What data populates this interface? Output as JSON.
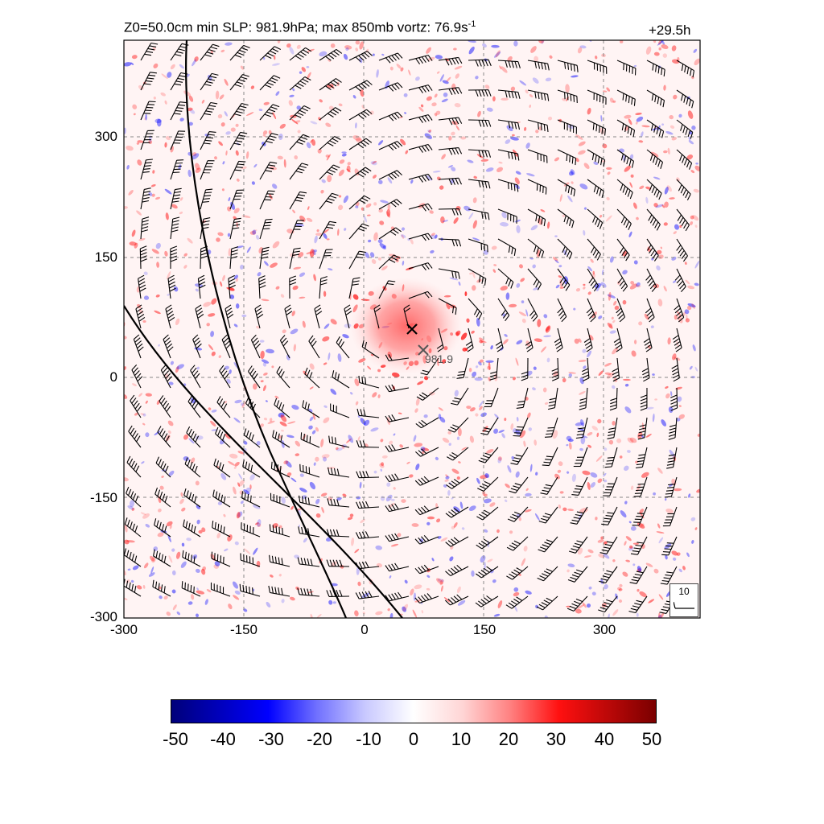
{
  "header": {
    "title_main": "Z0=50.0cm  min SLP: 981.9hPa; max 850mb vortz:  76.9s",
    "title_sup": "-1",
    "forecast_time": "+29.5h"
  },
  "map": {
    "x_ticks": [
      "-300",
      "-150",
      "0",
      "150",
      "300"
    ],
    "y_ticks": [
      "300",
      "150",
      "0",
      "-150",
      "-300"
    ],
    "center_label": "981.9",
    "barb_legend": "10",
    "colors": {
      "positive": "#ff0000",
      "negative": "#0000ff",
      "zero": "#ffffff"
    }
  },
  "colorbar": {
    "ticks": [
      "-50",
      "-40",
      "-30",
      "-20",
      "-10",
      "0",
      "10",
      "20",
      "30",
      "40",
      "50"
    ]
  }
}
